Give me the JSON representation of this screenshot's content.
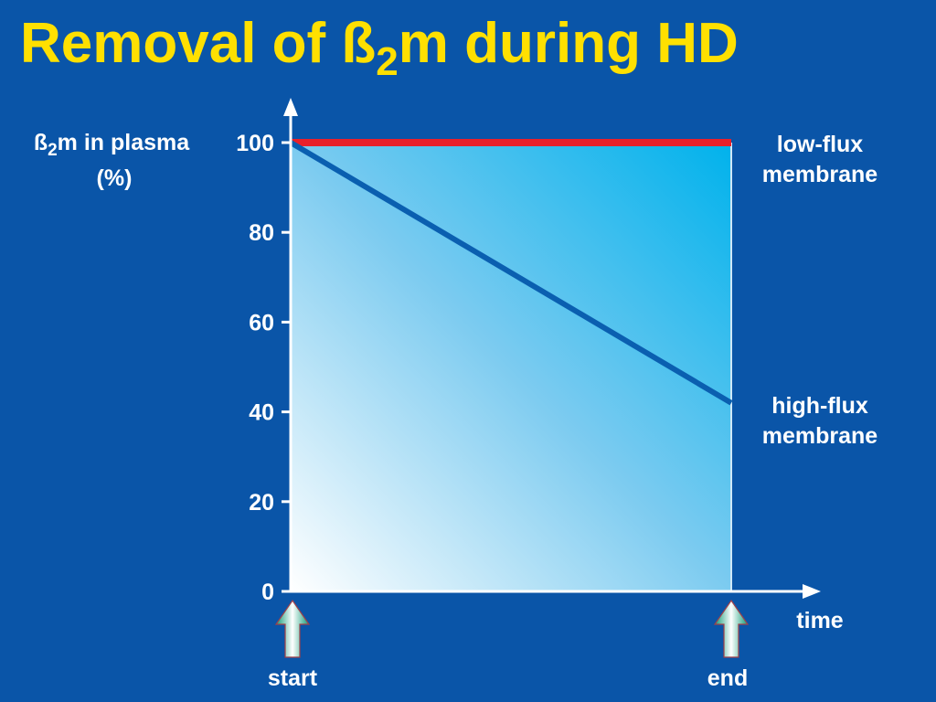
{
  "chart_data": {
    "type": "line",
    "title": "Removal of ß2m during HD",
    "title_parts": {
      "pre": "Removal of ß",
      "sub": "2",
      "post": "m during HD"
    },
    "ylabel": "ß2m in plasma (%)",
    "ylabel_parts": {
      "pre": "ß",
      "sub": "2",
      "post": "m in plasma",
      "line2": "(%)"
    },
    "xlabel": "time",
    "ylim": [
      0,
      100
    ],
    "yticks": [
      "0",
      "20",
      "40",
      "60",
      "80",
      "100"
    ],
    "x_markers": [
      "start",
      "end"
    ],
    "x": [
      0,
      1
    ],
    "series": [
      {
        "name": "low-flux membrane",
        "label_lines": [
          "low-flux",
          "membrane"
        ],
        "values": [
          100,
          100
        ],
        "color": "#e8202a"
      },
      {
        "name": "high-flux membrane",
        "label_lines": [
          "high-flux",
          "membrane"
        ],
        "values": [
          100,
          42
        ],
        "color": "#0a5fb0"
      }
    ],
    "colors": {
      "background": "#0a55a8",
      "title": "#ffe000",
      "arrow": "#1fb08a"
    }
  }
}
